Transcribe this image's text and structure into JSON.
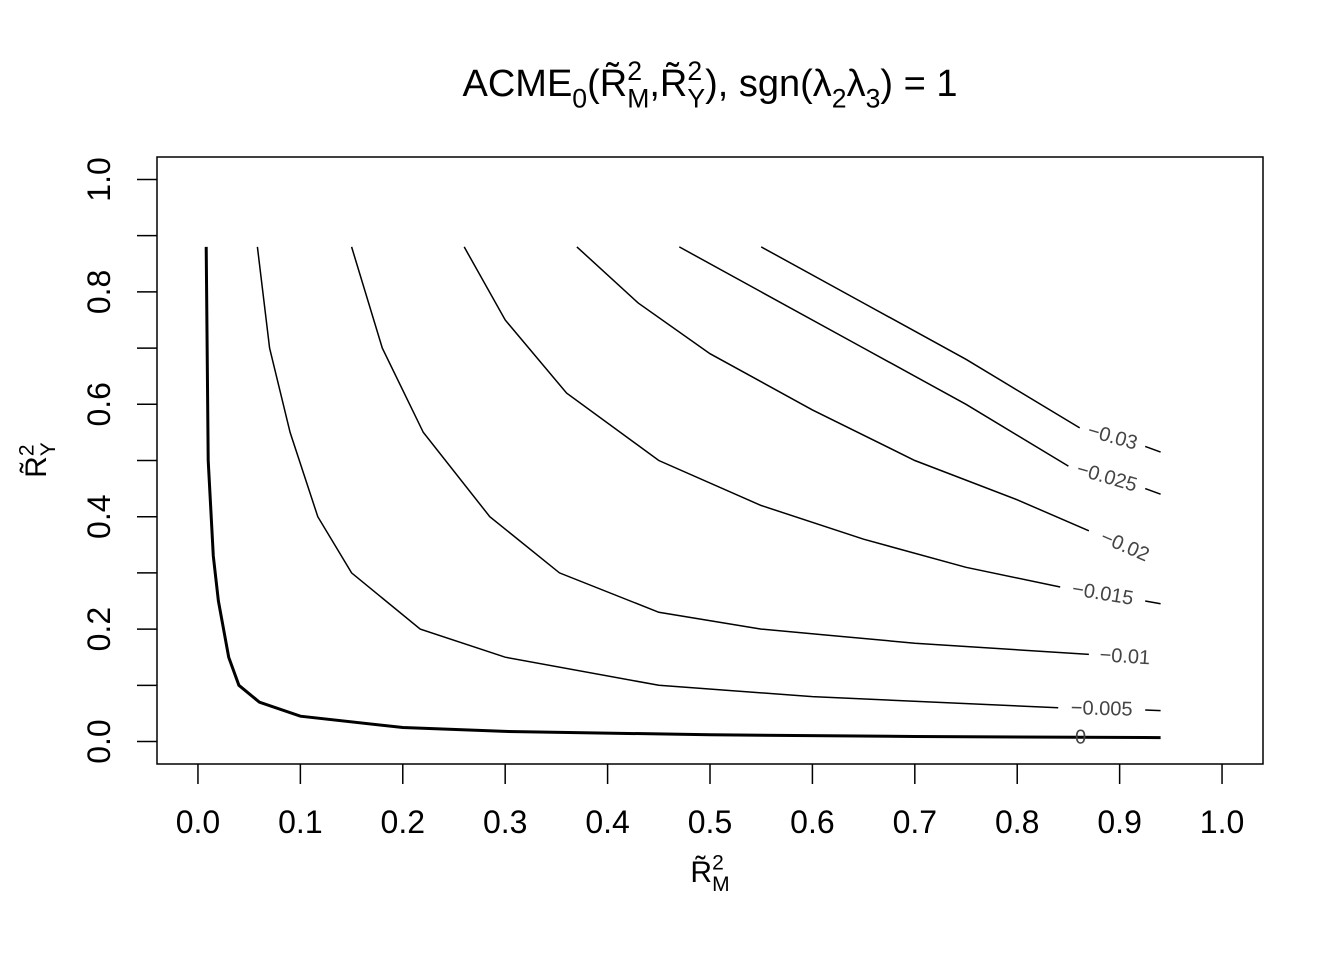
{
  "chart_data": {
    "type": "contour",
    "title": [
      "ACME",
      "0",
      "(R̃",
      "2",
      "M",
      ",R̃",
      "2",
      "Y",
      "), sgn(λ",
      "2",
      "λ",
      "3",
      ") = 1"
    ],
    "x_label": [
      "R̃",
      "2",
      "M"
    ],
    "y_label": [
      "R̃",
      "2",
      "Y"
    ],
    "xlim": [
      -0.04,
      1.04
    ],
    "ylim": [
      -0.04,
      1.04
    ],
    "xticks": [
      {
        "value": 0,
        "label": "0.0"
      },
      0.1,
      0.2,
      0.3,
      0.4,
      0.5,
      0.6,
      0.7,
      0.8,
      0.9,
      {
        "value": 1,
        "label": "1.0"
      }
    ],
    "yticks": [
      {
        "value": 0,
        "label": "0.0"
      },
      0.2,
      0.4,
      0.6,
      0.8,
      {
        "value": 1,
        "label": "1.0"
      }
    ],
    "yminorticks": [
      0.1,
      0.3,
      0.5,
      0.7,
      0.9
    ],
    "color": "#000000",
    "series": [
      {
        "name": "0",
        "level": 0,
        "width": 3,
        "x": [
          0.008,
          0.01,
          0.015,
          0.02,
          0.03,
          0.04,
          0.06,
          0.1,
          0.2,
          0.3,
          0.5,
          0.7,
          0.94
        ],
        "y": [
          0.88,
          0.5,
          0.33,
          0.25,
          0.15,
          0.1,
          0.07,
          0.045,
          0.025,
          0.018,
          0.012,
          0.009,
          0.007
        ]
      },
      {
        "name": "−0.005",
        "level": -0.005,
        "width": 1.5,
        "x": [
          0.058,
          0.07,
          0.09,
          0.117,
          0.15,
          0.217,
          0.3,
          0.45,
          0.6,
          0.84,
          null,
          0.925,
          0.94
        ],
        "y": [
          0.88,
          0.7,
          0.55,
          0.4,
          0.3,
          0.2,
          0.15,
          0.1,
          0.08,
          0.06,
          null,
          0.056,
          0.055
        ]
      },
      {
        "name": "−0.01",
        "level": -0.01,
        "width": 1.5,
        "x": [
          0.15,
          0.18,
          0.22,
          0.285,
          0.353,
          0.45,
          0.55,
          0.7,
          0.87
        ],
        "y": [
          0.88,
          0.7,
          0.55,
          0.4,
          0.3,
          0.23,
          0.2,
          0.175,
          0.155
        ]
      },
      {
        "name": "−0.015",
        "level": -0.015,
        "width": 1.5,
        "x": [
          0.26,
          0.3,
          0.36,
          0.45,
          0.55,
          0.65,
          0.75,
          0.842,
          null,
          0.925,
          0.94
        ],
        "y": [
          0.88,
          0.75,
          0.62,
          0.5,
          0.42,
          0.36,
          0.31,
          0.275,
          null,
          0.25,
          0.245
        ]
      },
      {
        "name": "−0.02",
        "level": -0.02,
        "width": 1.5,
        "x": [
          0.37,
          0.43,
          0.5,
          0.6,
          0.7,
          0.8,
          0.87
        ],
        "y": [
          0.88,
          0.78,
          0.69,
          0.59,
          0.5,
          0.43,
          0.375
        ]
      },
      {
        "name": "−0.025",
        "level": -0.025,
        "width": 1.5,
        "x": [
          0.47,
          0.55,
          0.65,
          0.75,
          0.85,
          null,
          0.925,
          0.94
        ],
        "y": [
          0.88,
          0.8,
          0.7,
          0.6,
          0.49,
          null,
          0.45,
          0.44
        ]
      },
      {
        "name": "−0.03",
        "level": -0.03,
        "width": 1.5,
        "x": [
          0.55,
          0.65,
          0.75,
          0.861,
          null,
          0.925,
          0.94
        ],
        "y": [
          0.88,
          0.78,
          0.68,
          0.558,
          null,
          0.525,
          0.515
        ]
      }
    ]
  }
}
